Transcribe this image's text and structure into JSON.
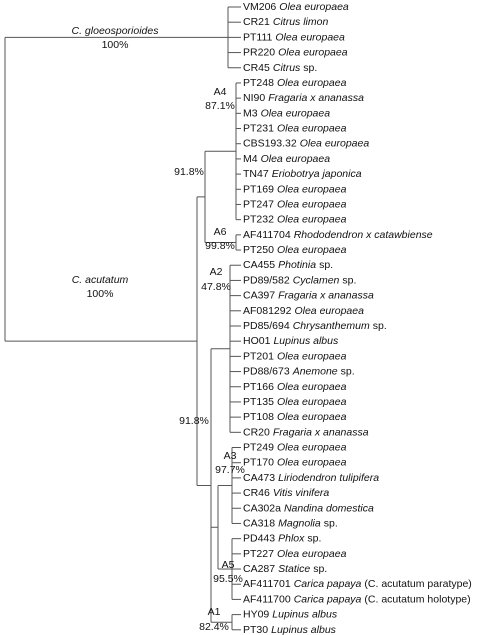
{
  "clades": {
    "gloeosporioides": {
      "name": "C. gloeosporioides",
      "support": "100%"
    },
    "acutatum": {
      "name": "C. acutatum",
      "support": "100%"
    },
    "upper": {
      "support": "91.8%"
    },
    "lower": {
      "support": "91.8%"
    },
    "A4": {
      "name": "A4",
      "support": "87.1%"
    },
    "A6": {
      "name": "A6",
      "support": "99.8%"
    },
    "A2": {
      "name": "A2",
      "support": "47.8%"
    },
    "A3": {
      "name": "A3",
      "support": "97.7%"
    },
    "A5": {
      "name": "A5",
      "support": "95.5%"
    },
    "A1": {
      "name": "A1",
      "support": "82.4%"
    }
  },
  "leaves": [
    {
      "id": "VM206",
      "species": "Olea europaea"
    },
    {
      "id": "CR21",
      "species": "Citrus limon"
    },
    {
      "id": "PT111",
      "species": "Olea europaea"
    },
    {
      "id": "PR220",
      "species": "Olea europaea"
    },
    {
      "id": "CR45",
      "species": "Citrus",
      "suffix": "sp."
    },
    {
      "id": "PT248",
      "species": "Olea europaea"
    },
    {
      "id": "NI90",
      "species": "Fragaria x ananassa"
    },
    {
      "id": "M3",
      "species": "Olea europaea"
    },
    {
      "id": "PT231",
      "species": "Olea europaea"
    },
    {
      "id": "CBS193.32",
      "species": "Olea europaea"
    },
    {
      "id": "M4",
      "species": "Olea europaea"
    },
    {
      "id": "TN47",
      "species": "Eriobotrya japonica"
    },
    {
      "id": "PT169",
      "species": "Olea europaea"
    },
    {
      "id": "PT247",
      "species": "Olea europaea"
    },
    {
      "id": "PT232",
      "species": "Olea europaea"
    },
    {
      "id": "AF411704",
      "species": "Rhododendron x catawbiense"
    },
    {
      "id": "PT250",
      "species": "Olea europaea"
    },
    {
      "id": "CA455",
      "species": "Photinia",
      "suffix": "sp."
    },
    {
      "id": "PD89/582",
      "species": "Cyclamen",
      "suffix": "sp."
    },
    {
      "id": "CA397",
      "species": "Fragaria x ananassa"
    },
    {
      "id": "AF081292",
      "species": "Olea europaea"
    },
    {
      "id": "PD85/694",
      "species": "Chrysanthemum",
      "suffix": "sp."
    },
    {
      "id": "HO01",
      "species": "Lupinus albus"
    },
    {
      "id": "PT201",
      "species": "Olea europaea"
    },
    {
      "id": "PD88/673",
      "species": "Anemone",
      "suffix": "sp."
    },
    {
      "id": "PT166",
      "species": "Olea europaea"
    },
    {
      "id": "PT135",
      "species": "Olea europaea"
    },
    {
      "id": "PT108",
      "species": "Olea europaea"
    },
    {
      "id": "CR20",
      "species": "Fragaria x ananassa"
    },
    {
      "id": "PT249",
      "species": "Olea europaea"
    },
    {
      "id": "PT170",
      "species": "Olea europaea"
    },
    {
      "id": "CA473",
      "species": "Liriodendron tulipifera"
    },
    {
      "id": "CR46",
      "species": "Vitis vinifera"
    },
    {
      "id": "CA302a",
      "species": "Nandina domestica"
    },
    {
      "id": "CA318",
      "species": "Magnolia",
      "suffix": "sp."
    },
    {
      "id": "PD443",
      "species": "Phlox",
      "suffix": "sp."
    },
    {
      "id": "PT227",
      "species": "Olea europaea"
    },
    {
      "id": "CA287",
      "species": "Statice",
      "suffix": "sp."
    },
    {
      "id": "AF411701",
      "species": "Carica papaya",
      "suffix": "(C. acutatum paratype)"
    },
    {
      "id": "AF411700",
      "species": "Carica papaya",
      "suffix": "(C. acutatum holotype)"
    },
    {
      "id": "HY09",
      "species": "Lupinus albus"
    },
    {
      "id": "PT30",
      "species": "Lupinus albus"
    }
  ]
}
